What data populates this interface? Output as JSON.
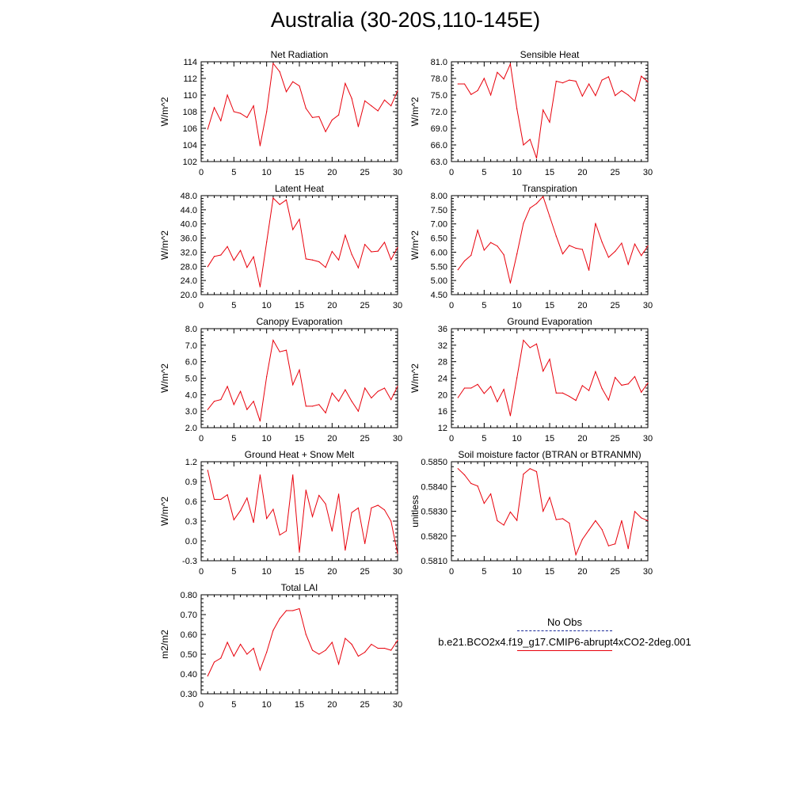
{
  "title": "Australia (30-20S,110-145E)",
  "legend": {
    "entries": [
      {
        "label": "No Obs",
        "color": "#1a2a9a",
        "style": "dashed"
      },
      {
        "label": "b.e21.BCO2x4.f19_g17.CMIP6-abrupt4xCO2-2deg.001",
        "color": "#e8000b",
        "style": "solid"
      }
    ]
  },
  "colors": {
    "series": "#e8000b"
  },
  "chart_data": [
    {
      "type": "line",
      "title": "Net Radiation",
      "ylabel": "W/m^2",
      "x": [
        1,
        2,
        3,
        4,
        5,
        6,
        7,
        8,
        9,
        10,
        11,
        12,
        13,
        14,
        15,
        16,
        17,
        18,
        19,
        20,
        21,
        22,
        23,
        24,
        25,
        26,
        27,
        28,
        29,
        30
      ],
      "xlim": [
        0,
        30
      ],
      "xticks": [
        0,
        5,
        10,
        15,
        20,
        25,
        30
      ],
      "ylim": [
        102,
        114
      ],
      "yticks": [
        "102",
        "104",
        "106",
        "108",
        "110",
        "112",
        "114"
      ],
      "values": [
        105.9,
        108.5,
        106.9,
        110.0,
        108.0,
        107.8,
        107.3,
        108.7,
        103.9,
        108.0,
        113.8,
        112.8,
        110.4,
        111.6,
        111.1,
        108.4,
        107.3,
        107.4,
        105.6,
        107.0,
        107.6,
        111.4,
        109.6,
        106.2,
        109.3,
        108.7,
        108.1,
        109.4,
        108.7,
        110.5
      ]
    },
    {
      "type": "line",
      "title": "Sensible Heat",
      "ylabel": "W/m^2",
      "x": [
        1,
        2,
        3,
        4,
        5,
        6,
        7,
        8,
        9,
        10,
        11,
        12,
        13,
        14,
        15,
        16,
        17,
        18,
        19,
        20,
        21,
        22,
        23,
        24,
        25,
        26,
        27,
        28,
        29,
        30
      ],
      "xlim": [
        0,
        30
      ],
      "xticks": [
        0,
        5,
        10,
        15,
        20,
        25,
        30
      ],
      "ylim": [
        63,
        81
      ],
      "yticks": [
        "63.0",
        "66.0",
        "69.0",
        "72.0",
        "75.0",
        "78.0",
        "81.0"
      ],
      "values": [
        77.0,
        77.0,
        75.1,
        75.8,
        78.0,
        75.0,
        79.1,
        77.9,
        80.6,
        72.5,
        66.0,
        67.0,
        63.6,
        72.3,
        70.1,
        77.5,
        77.2,
        77.7,
        77.5,
        74.8,
        77.0,
        74.9,
        77.7,
        78.3,
        74.9,
        75.8,
        75.0,
        73.9,
        78.4,
        77.4
      ]
    },
    {
      "type": "line",
      "title": "Latent Heat",
      "ylabel": "W/m^2",
      "x": [
        1,
        2,
        3,
        4,
        5,
        6,
        7,
        8,
        9,
        10,
        11,
        12,
        13,
        14,
        15,
        16,
        17,
        18,
        19,
        20,
        21,
        22,
        23,
        24,
        25,
        26,
        27,
        28,
        29,
        30
      ],
      "xlim": [
        0,
        30
      ],
      "xticks": [
        0,
        5,
        10,
        15,
        20,
        25,
        30
      ],
      "ylim": [
        20,
        48
      ],
      "yticks": [
        "20.0",
        "24.0",
        "28.0",
        "32.0",
        "36.0",
        "40.0",
        "44.0",
        "48.0"
      ],
      "values": [
        27.9,
        30.8,
        31.2,
        33.6,
        29.7,
        32.5,
        27.7,
        30.7,
        22.2,
        34.9,
        47.3,
        45.5,
        46.8,
        38.4,
        41.3,
        30.1,
        29.8,
        29.3,
        27.7,
        32.2,
        29.8,
        36.8,
        31.4,
        27.6,
        34.2,
        32.1,
        32.3,
        34.8,
        29.9,
        33.3
      ]
    },
    {
      "type": "line",
      "title": "Transpiration",
      "ylabel": "W/m^2",
      "x": [
        1,
        2,
        3,
        4,
        5,
        6,
        7,
        8,
        9,
        10,
        11,
        12,
        13,
        14,
        15,
        16,
        17,
        18,
        19,
        20,
        21,
        22,
        23,
        24,
        25,
        26,
        27,
        28,
        29,
        30
      ],
      "xlim": [
        0,
        30
      ],
      "xticks": [
        0,
        5,
        10,
        15,
        20,
        25,
        30
      ],
      "ylim": [
        4.5,
        8.0
      ],
      "yticks": [
        "4.50",
        "5.00",
        "5.50",
        "6.00",
        "6.50",
        "7.00",
        "7.50",
        "8.00"
      ],
      "values": [
        5.38,
        5.69,
        5.89,
        6.78,
        6.07,
        6.34,
        6.22,
        5.91,
        4.91,
        5.94,
        7.02,
        7.56,
        7.72,
        7.97,
        7.27,
        6.57,
        5.94,
        6.24,
        6.14,
        6.1,
        5.36,
        7.02,
        6.36,
        5.82,
        6.03,
        6.32,
        5.57,
        6.29,
        5.88,
        6.22
      ]
    },
    {
      "type": "line",
      "title": "Canopy Evaporation",
      "ylabel": "W/m^2",
      "x": [
        1,
        2,
        3,
        4,
        5,
        6,
        7,
        8,
        9,
        10,
        11,
        12,
        13,
        14,
        15,
        16,
        17,
        18,
        19,
        20,
        21,
        22,
        23,
        24,
        25,
        26,
        27,
        28,
        29,
        30
      ],
      "xlim": [
        0,
        30
      ],
      "xticks": [
        0,
        5,
        10,
        15,
        20,
        25,
        30
      ],
      "ylim": [
        2.0,
        8.0
      ],
      "yticks": [
        "2.0",
        "3.0",
        "4.0",
        "5.0",
        "6.0",
        "7.0",
        "8.0"
      ],
      "values": [
        3.1,
        3.6,
        3.7,
        4.5,
        3.4,
        4.2,
        3.1,
        3.6,
        2.4,
        5.1,
        7.3,
        6.6,
        6.7,
        4.6,
        5.5,
        3.3,
        3.3,
        3.4,
        2.9,
        4.1,
        3.6,
        4.3,
        3.6,
        3.0,
        4.4,
        3.8,
        4.2,
        4.4,
        3.7,
        4.5
      ]
    },
    {
      "type": "line",
      "title": "Ground Evaporation",
      "ylabel": "W/m^2",
      "x": [
        1,
        2,
        3,
        4,
        5,
        6,
        7,
        8,
        9,
        10,
        11,
        12,
        13,
        14,
        15,
        16,
        17,
        18,
        19,
        20,
        21,
        22,
        23,
        24,
        25,
        26,
        27,
        28,
        29,
        30
      ],
      "xlim": [
        0,
        30
      ],
      "xticks": [
        0,
        5,
        10,
        15,
        20,
        25,
        30
      ],
      "ylim": [
        12,
        36
      ],
      "yticks": [
        "12",
        "16",
        "20",
        "24",
        "28",
        "32",
        "36"
      ],
      "values": [
        19.3,
        21.6,
        21.6,
        22.5,
        20.3,
        22.0,
        18.3,
        21.3,
        14.9,
        24.1,
        33.2,
        31.4,
        32.3,
        25.7,
        28.6,
        20.4,
        20.4,
        19.6,
        18.6,
        22.2,
        21.0,
        25.6,
        21.5,
        18.7,
        24.2,
        22.3,
        22.6,
        24.4,
        20.6,
        22.8
      ]
    },
    {
      "type": "line",
      "title": "Ground Heat + Snow Melt",
      "ylabel": "W/m^2",
      "x": [
        1,
        2,
        3,
        4,
        5,
        6,
        7,
        8,
        9,
        10,
        11,
        12,
        13,
        14,
        15,
        16,
        17,
        18,
        19,
        20,
        21,
        22,
        23,
        24,
        25,
        26,
        27,
        28,
        29,
        30
      ],
      "xlim": [
        0,
        30
      ],
      "xticks": [
        0,
        5,
        10,
        15,
        20,
        25,
        30
      ],
      "ylim": [
        -0.3,
        1.2
      ],
      "yticks": [
        "-0.3",
        "0.0",
        "0.3",
        "0.6",
        "0.9",
        "1.2"
      ],
      "values": [
        1.07,
        0.63,
        0.63,
        0.7,
        0.32,
        0.46,
        0.65,
        0.28,
        1.0,
        0.34,
        0.48,
        0.09,
        0.15,
        1.0,
        -0.17,
        0.77,
        0.37,
        0.69,
        0.56,
        0.15,
        0.71,
        -0.14,
        0.43,
        0.5,
        -0.04,
        0.5,
        0.54,
        0.47,
        0.3,
        -0.19
      ]
    },
    {
      "type": "line",
      "title": "Soil moisture factor (BTRAN or BTRANMN)",
      "ylabel": "unitless",
      "x": [
        1,
        2,
        3,
        4,
        5,
        6,
        7,
        8,
        9,
        10,
        11,
        12,
        13,
        14,
        15,
        16,
        17,
        18,
        19,
        20,
        21,
        22,
        23,
        24,
        25,
        26,
        27,
        28,
        29,
        30
      ],
      "xlim": [
        0,
        30
      ],
      "xticks": [
        0,
        5,
        10,
        15,
        20,
        25,
        30
      ],
      "ylim": [
        0.581,
        0.585
      ],
      "yticks": [
        "0.5810",
        "0.5820",
        "0.5830",
        "0.5840",
        "0.5850"
      ],
      "values": [
        0.58472,
        0.58447,
        0.58412,
        0.58402,
        0.58332,
        0.5837,
        0.58262,
        0.58244,
        0.58297,
        0.58263,
        0.5845,
        0.58472,
        0.5846,
        0.583,
        0.58356,
        0.58266,
        0.5827,
        0.58252,
        0.58124,
        0.58186,
        0.58224,
        0.58262,
        0.58226,
        0.5816,
        0.58168,
        0.58262,
        0.58149,
        0.58299,
        0.58273,
        0.58262
      ]
    },
    {
      "type": "line",
      "title": "Total LAI",
      "ylabel": "m2/m2",
      "x": [
        1,
        2,
        3,
        4,
        5,
        6,
        7,
        8,
        9,
        10,
        11,
        12,
        13,
        14,
        15,
        16,
        17,
        18,
        19,
        20,
        21,
        22,
        23,
        24,
        25,
        26,
        27,
        28,
        29,
        30
      ],
      "xlim": [
        0,
        30
      ],
      "xticks": [
        0,
        5,
        10,
        15,
        20,
        25,
        30
      ],
      "ylim": [
        0.3,
        0.8
      ],
      "yticks": [
        "0.30",
        "0.40",
        "0.50",
        "0.60",
        "0.70",
        "0.80"
      ],
      "values": [
        0.39,
        0.46,
        0.48,
        0.56,
        0.49,
        0.55,
        0.5,
        0.53,
        0.42,
        0.51,
        0.62,
        0.68,
        0.72,
        0.72,
        0.73,
        0.6,
        0.52,
        0.5,
        0.52,
        0.56,
        0.45,
        0.58,
        0.55,
        0.49,
        0.51,
        0.55,
        0.53,
        0.53,
        0.52,
        0.57
      ]
    }
  ]
}
